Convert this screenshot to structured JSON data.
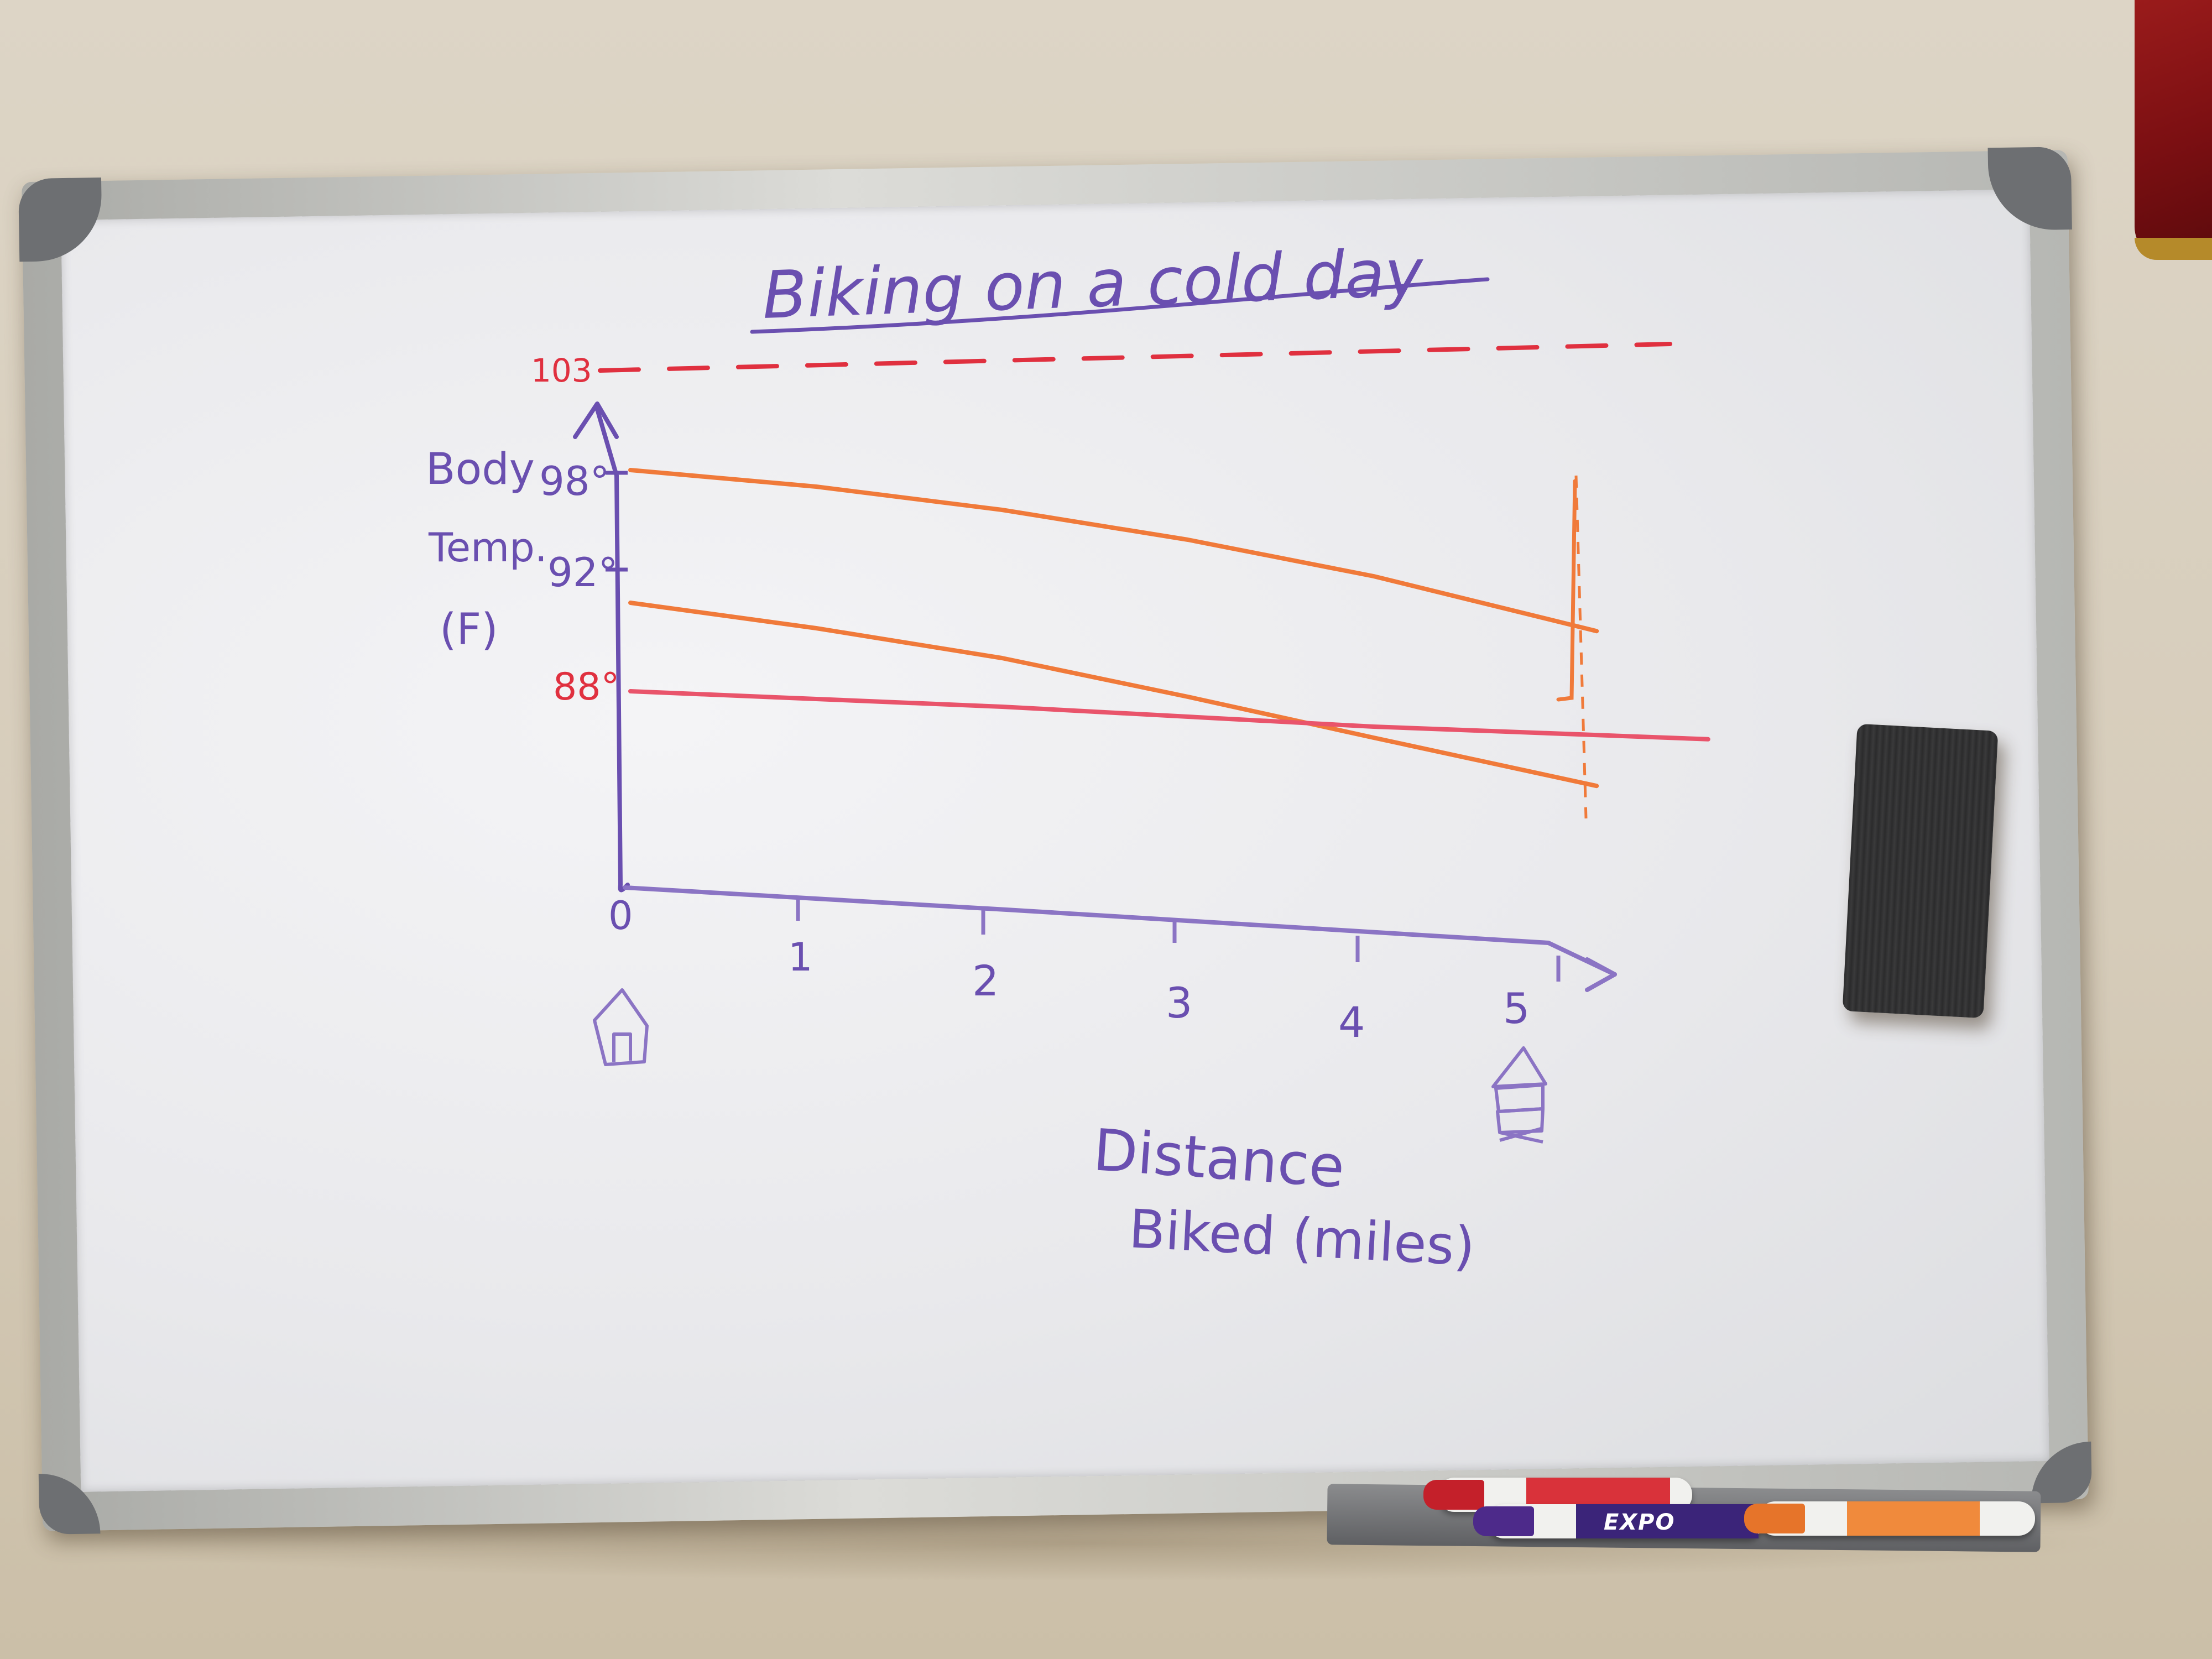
{
  "title": "Biking on a cold day",
  "y_axis_label": [
    "Body",
    "Temp.",
    "(F)"
  ],
  "x_axis_label": [
    "Distance",
    "Biked (miles)"
  ],
  "y_ticks": [
    {
      "text": "98°",
      "value": 98
    },
    {
      "text": "92°",
      "value": 92
    },
    {
      "text": "88°",
      "value": 88
    }
  ],
  "reference_line": {
    "text": "103",
    "value": 103
  },
  "x_ticks": [
    "0",
    "1",
    "2",
    "3",
    "4",
    "5"
  ],
  "start_icon": "house-icon",
  "end_icon": "building-icon",
  "marker_brand": "EXPO",
  "colors": {
    "purple_ink": "#6a4fb0",
    "orange_ink": "#f07a3a",
    "red_ink": "#e0303f",
    "pink_ink": "#e9546b"
  },
  "chart_data": {
    "type": "line",
    "title": "Biking on a cold day",
    "xlabel": "Distance Biked (miles)",
    "ylabel": "Body Temp. (F)",
    "x_ticks": [
      0,
      1,
      2,
      3,
      4,
      5
    ],
    "y_ticks": [
      88,
      92,
      98
    ],
    "reference_lines": [
      {
        "value": 103,
        "style": "dashed"
      }
    ],
    "series": [
      {
        "x": [
          0,
          1,
          2,
          3,
          4,
          5.2
        ],
        "y": [
          98,
          97.4,
          96.5,
          95.3,
          93.8,
          91.5
        ]
      },
      {
        "x": [
          0,
          1,
          2,
          3,
          4,
          5.2
        ],
        "y": [
          92,
          91,
          89.8,
          88.2,
          86.5,
          84.5
        ]
      },
      {
        "x": [
          0,
          1,
          2,
          3,
          4,
          5.8
        ],
        "y": [
          88,
          87.8,
          87.6,
          87.3,
          87,
          86.7
        ]
      }
    ]
  }
}
